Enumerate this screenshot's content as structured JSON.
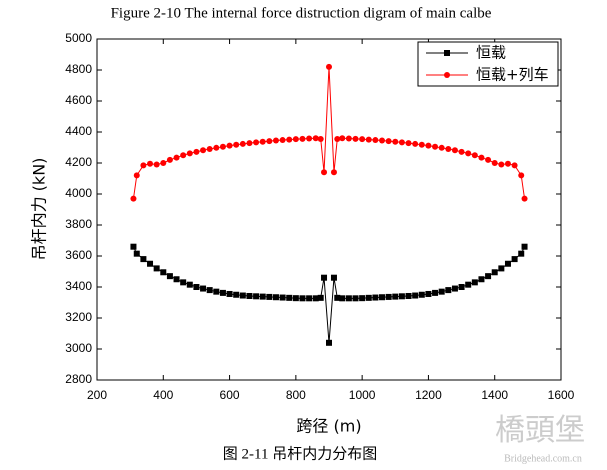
{
  "chart_data": {
    "type": "line",
    "title": "Figure 2-10 The internal force distruction digram of main calbe",
    "x_label": "跨径 (m)",
    "y_label": "吊杆内力 (kN)",
    "caption": "图 2-11  吊杆内力分布图",
    "watermark": {
      "logo": "橋頭堡",
      "site": "Bridgehead.com.cn"
    },
    "xlim": [
      200,
      1600
    ],
    "xticks": [
      200,
      400,
      600,
      800,
      1000,
      1200,
      1400,
      1600
    ],
    "ylim": [
      2800,
      5000
    ],
    "yticks": [
      2800,
      3000,
      3200,
      3400,
      3600,
      3800,
      4000,
      4200,
      4400,
      4600,
      4800,
      5000
    ],
    "legend": "top-right",
    "x": [
      310,
      320,
      340,
      360,
      380,
      400,
      420,
      440,
      460,
      480,
      500,
      520,
      540,
      560,
      580,
      600,
      620,
      640,
      660,
      680,
      700,
      720,
      740,
      760,
      780,
      800,
      820,
      840,
      860,
      875,
      885,
      900,
      915,
      925,
      940,
      960,
      980,
      1000,
      1020,
      1040,
      1060,
      1080,
      1100,
      1120,
      1140,
      1160,
      1180,
      1200,
      1220,
      1240,
      1260,
      1280,
      1300,
      1320,
      1340,
      1360,
      1380,
      1400,
      1420,
      1440,
      1460,
      1480,
      1490
    ],
    "series": [
      {
        "name": "恒载",
        "color": "#000000",
        "marker": "square",
        "values": [
          3660,
          3615,
          3580,
          3550,
          3520,
          3495,
          3470,
          3450,
          3430,
          3415,
          3400,
          3390,
          3380,
          3370,
          3362,
          3355,
          3350,
          3345,
          3342,
          3340,
          3338,
          3336,
          3334,
          3332,
          3330,
          3328,
          3327,
          3327,
          3327,
          3330,
          3460,
          3040,
          3460,
          3330,
          3327,
          3327,
          3327,
          3328,
          3330,
          3332,
          3334,
          3336,
          3338,
          3340,
          3342,
          3345,
          3350,
          3355,
          3362,
          3370,
          3380,
          3390,
          3400,
          3415,
          3430,
          3450,
          3470,
          3495,
          3520,
          3550,
          3580,
          3615,
          3660
        ]
      },
      {
        "name": "恒载+列车",
        "color": "#ff0000",
        "marker": "circle",
        "values": [
          3970,
          4120,
          4185,
          4195,
          4190,
          4200,
          4220,
          4235,
          4250,
          4262,
          4272,
          4282,
          4290,
          4298,
          4305,
          4312,
          4318,
          4323,
          4328,
          4333,
          4337,
          4341,
          4345,
          4348,
          4351,
          4354,
          4356,
          4358,
          4360,
          4355,
          4140,
          4820,
          4140,
          4355,
          4360,
          4358,
          4356,
          4354,
          4351,
          4348,
          4345,
          4341,
          4337,
          4333,
          4328,
          4323,
          4318,
          4312,
          4305,
          4298,
          4290,
          4282,
          4272,
          4262,
          4250,
          4235,
          4220,
          4200,
          4190,
          4195,
          4185,
          4120,
          3970
        ]
      }
    ]
  }
}
